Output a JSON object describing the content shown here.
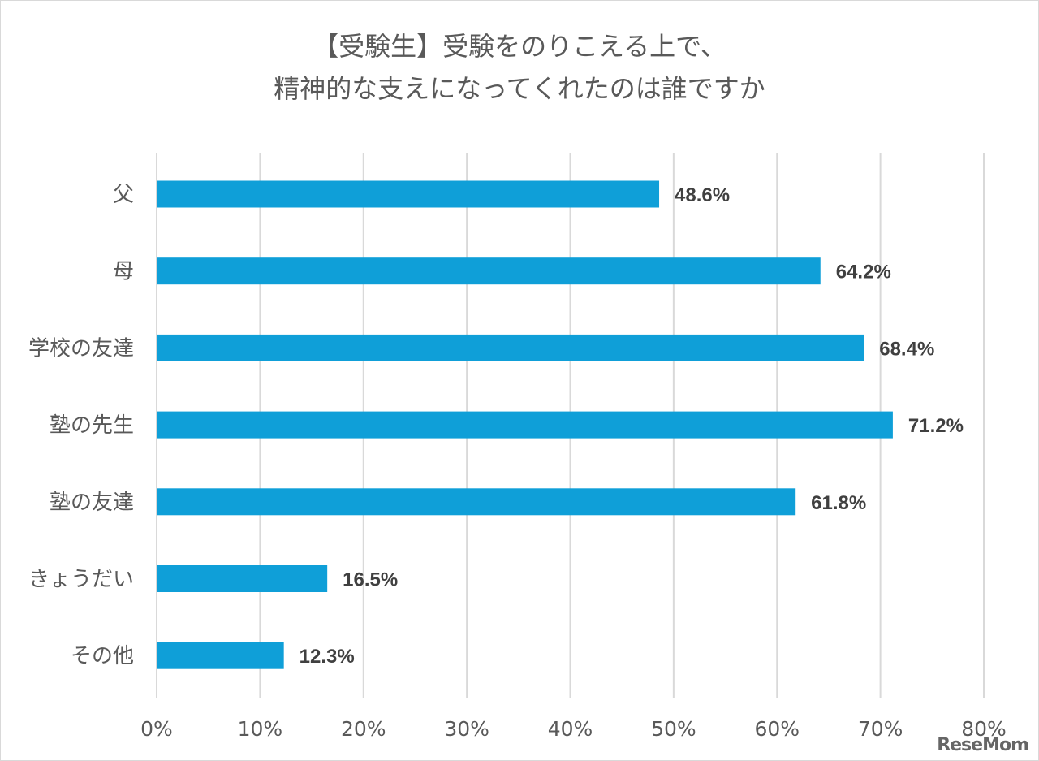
{
  "chart_data": {
    "type": "bar",
    "orientation": "horizontal",
    "title_lines": [
      "【受験生】受験をのりこえる上で、",
      "精神的な支えになってくれたのは誰ですか"
    ],
    "categories": [
      "父",
      "母",
      "学校の友達",
      "塾の先生",
      "塾の友達",
      "きょうだい",
      "その他"
    ],
    "values": [
      48.6,
      64.2,
      68.4,
      71.2,
      61.8,
      16.5,
      12.3
    ],
    "value_labels": [
      "48.6%",
      "64.2%",
      "68.4%",
      "71.2%",
      "61.8%",
      "16.5%",
      "12.3%"
    ],
    "xlim": [
      0,
      80
    ],
    "xticks": [
      0,
      10,
      20,
      30,
      40,
      50,
      60,
      70,
      80
    ],
    "xtick_labels": [
      "0%",
      "10%",
      "20%",
      "30%",
      "40%",
      "50%",
      "60%",
      "70%",
      "80%"
    ],
    "grid": true,
    "bar_color": "#0f9fd8",
    "grid_color": "#d9d9d9"
  },
  "watermark": "ReseMom"
}
